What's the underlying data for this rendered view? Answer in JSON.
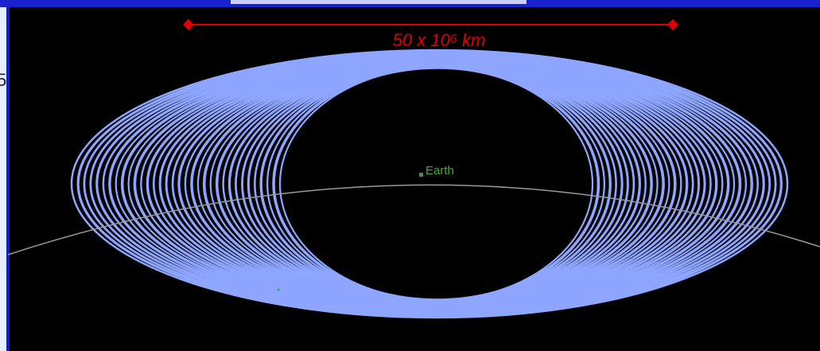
{
  "scale_label": "50 x 10⁶ km",
  "body_label": "Earth",
  "edge_text": "5"
}
